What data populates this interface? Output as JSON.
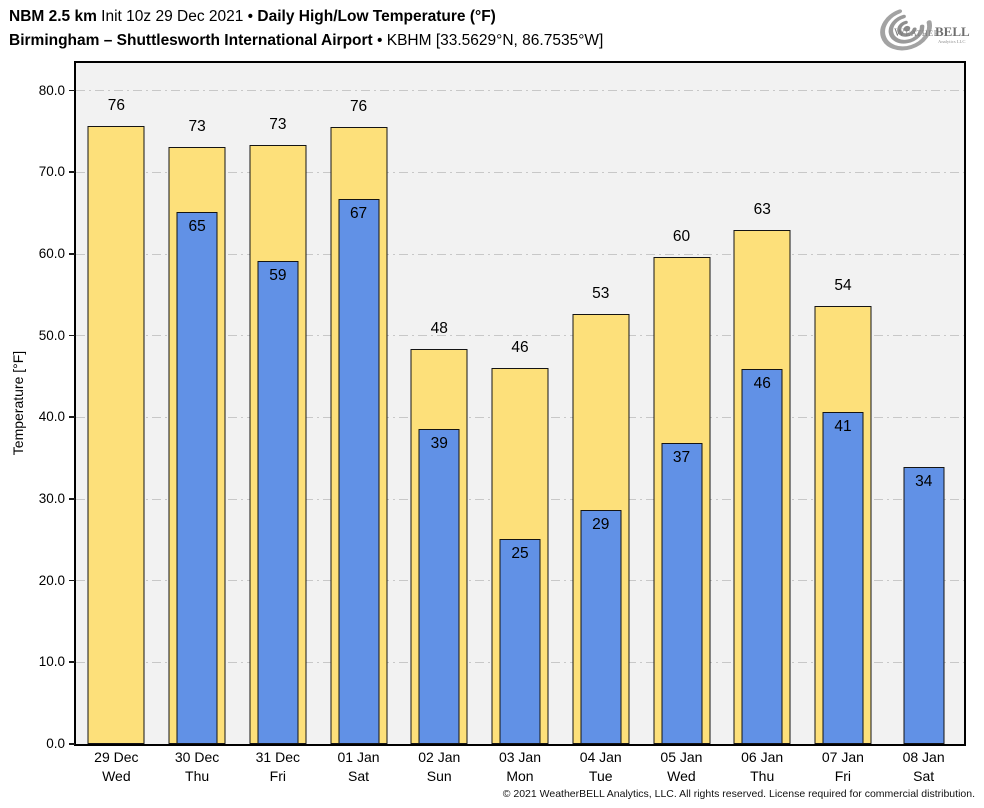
{
  "header": {
    "line1": {
      "model": "NBM 2.5 km",
      "init": " Init 10z 29 Dec 2021 • ",
      "product": "Daily High/Low Temperature (°F)"
    },
    "line2": {
      "location": "Birmingham – Shuttlesworth International Airport",
      "station": " • KBHM [33.5629°N, 86.7535°W]"
    }
  },
  "logo": {
    "word_light": "Weather",
    "word_bold": "BELL",
    "subtitle": "Analytics LLC"
  },
  "footer": {
    "copyright": "© 2021 WeatherBELL Analytics, LLC. All rights reserved. License required for commercial distribution."
  },
  "chart_data": {
    "type": "bar",
    "title": "Daily High/Low Temperature (°F)",
    "subtitle": "Birmingham – Shuttlesworth International Airport • KBHM",
    "xlabel": "",
    "ylabel": "Temperature [°F]",
    "ylim": [
      0,
      83.4
    ],
    "yticks": [
      0,
      10,
      20,
      30,
      40,
      50,
      60,
      70,
      80
    ],
    "ytick_labels": [
      "0.0",
      "10.0",
      "20.0",
      "30.0",
      "40.0",
      "50.0",
      "60.0",
      "70.0",
      "80.0"
    ],
    "grid": "horizontal-dash-dot",
    "legend_position": "none",
    "categories": [
      {
        "date": "29 Dec",
        "day": "Wed"
      },
      {
        "date": "30 Dec",
        "day": "Thu"
      },
      {
        "date": "31 Dec",
        "day": "Fri"
      },
      {
        "date": "01 Jan",
        "day": "Sat"
      },
      {
        "date": "02 Jan",
        "day": "Sun"
      },
      {
        "date": "03 Jan",
        "day": "Mon"
      },
      {
        "date": "04 Jan",
        "day": "Tue"
      },
      {
        "date": "05 Jan",
        "day": "Wed"
      },
      {
        "date": "06 Jan",
        "day": "Thu"
      },
      {
        "date": "07 Jan",
        "day": "Fri"
      },
      {
        "date": "08 Jan",
        "day": "Sat"
      }
    ],
    "series": [
      {
        "name": "Daily High",
        "color": "#FDE07A",
        "values": [
          75.7,
          73.1,
          73.3,
          75.6,
          48.4,
          46.0,
          52.7,
          59.7,
          62.9,
          53.6,
          null
        ],
        "labels": [
          "76",
          "73",
          "73",
          "76",
          "48",
          "46",
          "53",
          "60",
          "63",
          "54",
          null
        ]
      },
      {
        "name": "Daily Low",
        "color": "#6191E6",
        "values": [
          null,
          65.2,
          59.2,
          66.8,
          38.6,
          25.1,
          28.7,
          36.9,
          45.9,
          40.7,
          33.9
        ],
        "labels": [
          null,
          "65",
          "59",
          "67",
          "39",
          "25",
          "29",
          "37",
          "46",
          "41",
          "34"
        ]
      }
    ]
  },
  "colors": {
    "high_bar": "#FDE07A",
    "low_bar": "#6191E6",
    "bar_border": "#141414",
    "plot_background": "#f2f2f2",
    "gridline": "#c8c8c8",
    "axis": "#000000"
  }
}
